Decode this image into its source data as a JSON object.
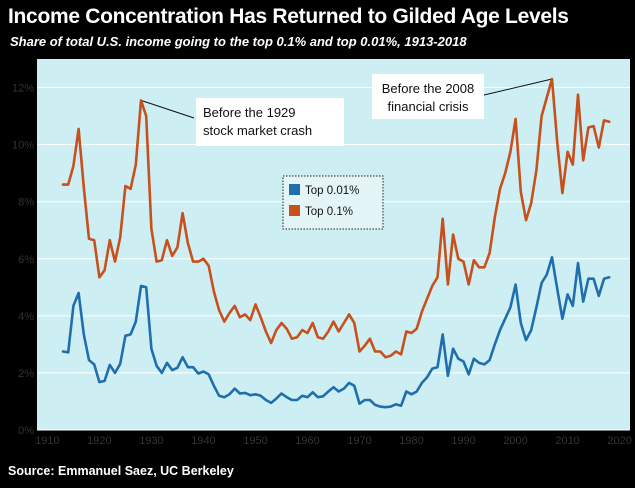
{
  "header": {
    "title": "Income Concentration Has Returned to Gilded Age Levels",
    "subtitle": "Share of total U.S. income going to the top 0.1% and top 0.01%, 1913-2018"
  },
  "footer": {
    "source": "Source: Emmanuel Saez, UC Berkeley"
  },
  "chart_data": {
    "type": "line",
    "title": "Income Concentration Has Returned to Gilded Age Levels",
    "subtitle": "Share of total U.S. income going to the top 0.1% and top 0.01%, 1913-2018",
    "xlim": [
      1908,
      2022
    ],
    "ylim": [
      0,
      13
    ],
    "x_ticks": [
      1910,
      1920,
      1930,
      1940,
      1950,
      1960,
      1970,
      1980,
      1990,
      2000,
      2010,
      2020
    ],
    "y_ticks": [
      0,
      2,
      4,
      6,
      8,
      10,
      12
    ],
    "y_tick_labels": [
      "0%",
      "2%",
      "4%",
      "6%",
      "8%",
      "10%",
      "12%"
    ],
    "grid": "horizontal",
    "legend_position": "center",
    "colors": {
      "plot_background": "#cdeef2",
      "grid": "#ffffff",
      "top_001": "#1f6fae",
      "top_01": "#c8501d"
    },
    "series": [
      {
        "name": "Top 0.01%",
        "color": "#1f6fae",
        "points": [
          [
            1913,
            2.75
          ],
          [
            1914,
            2.72
          ],
          [
            1915,
            4.35
          ],
          [
            1916,
            4.8
          ],
          [
            1917,
            3.35
          ],
          [
            1918,
            2.45
          ],
          [
            1919,
            2.3
          ],
          [
            1920,
            1.68
          ],
          [
            1921,
            1.72
          ],
          [
            1922,
            2.28
          ],
          [
            1923,
            2.0
          ],
          [
            1924,
            2.32
          ],
          [
            1925,
            3.3
          ],
          [
            1926,
            3.35
          ],
          [
            1927,
            3.8
          ],
          [
            1928,
            5.05
          ],
          [
            1929,
            5.0
          ],
          [
            1930,
            2.85
          ],
          [
            1931,
            2.25
          ],
          [
            1932,
            2.0
          ],
          [
            1933,
            2.35
          ],
          [
            1934,
            2.1
          ],
          [
            1935,
            2.18
          ],
          [
            1936,
            2.55
          ],
          [
            1937,
            2.2
          ],
          [
            1938,
            2.2
          ],
          [
            1939,
            1.98
          ],
          [
            1940,
            2.05
          ],
          [
            1941,
            1.95
          ],
          [
            1942,
            1.55
          ],
          [
            1943,
            1.2
          ],
          [
            1944,
            1.15
          ],
          [
            1945,
            1.25
          ],
          [
            1946,
            1.45
          ],
          [
            1947,
            1.28
          ],
          [
            1948,
            1.3
          ],
          [
            1949,
            1.22
          ],
          [
            1950,
            1.25
          ],
          [
            1951,
            1.2
          ],
          [
            1952,
            1.05
          ],
          [
            1953,
            0.95
          ],
          [
            1954,
            1.1
          ],
          [
            1955,
            1.28
          ],
          [
            1956,
            1.15
          ],
          [
            1957,
            1.05
          ],
          [
            1958,
            1.05
          ],
          [
            1959,
            1.2
          ],
          [
            1960,
            1.15
          ],
          [
            1961,
            1.32
          ],
          [
            1962,
            1.15
          ],
          [
            1963,
            1.18
          ],
          [
            1964,
            1.35
          ],
          [
            1965,
            1.5
          ],
          [
            1966,
            1.35
          ],
          [
            1967,
            1.45
          ],
          [
            1968,
            1.65
          ],
          [
            1969,
            1.55
          ],
          [
            1970,
            0.92
          ],
          [
            1971,
            1.05
          ],
          [
            1972,
            1.05
          ],
          [
            1973,
            0.88
          ],
          [
            1974,
            0.82
          ],
          [
            1975,
            0.8
          ],
          [
            1976,
            0.82
          ],
          [
            1977,
            0.9
          ],
          [
            1978,
            0.85
          ],
          [
            1979,
            1.35
          ],
          [
            1980,
            1.25
          ],
          [
            1981,
            1.35
          ],
          [
            1982,
            1.65
          ],
          [
            1983,
            1.85
          ],
          [
            1984,
            2.15
          ],
          [
            1985,
            2.2
          ],
          [
            1986,
            3.35
          ],
          [
            1987,
            1.9
          ],
          [
            1988,
            2.85
          ],
          [
            1989,
            2.5
          ],
          [
            1990,
            2.4
          ],
          [
            1991,
            1.95
          ],
          [
            1992,
            2.5
          ],
          [
            1993,
            2.35
          ],
          [
            1994,
            2.3
          ],
          [
            1995,
            2.45
          ],
          [
            1996,
            3.0
          ],
          [
            1997,
            3.5
          ],
          [
            1998,
            3.9
          ],
          [
            1999,
            4.3
          ],
          [
            2000,
            5.1
          ],
          [
            2001,
            3.75
          ],
          [
            2002,
            3.15
          ],
          [
            2003,
            3.5
          ],
          [
            2004,
            4.3
          ],
          [
            2005,
            5.15
          ],
          [
            2006,
            5.45
          ],
          [
            2007,
            6.05
          ],
          [
            2008,
            4.95
          ],
          [
            2009,
            3.9
          ],
          [
            2010,
            4.75
          ],
          [
            2011,
            4.35
          ],
          [
            2012,
            5.85
          ],
          [
            2013,
            4.5
          ],
          [
            2014,
            5.3
          ],
          [
            2015,
            5.3
          ],
          [
            2016,
            4.7
          ],
          [
            2017,
            5.3
          ],
          [
            2018,
            5.35
          ]
        ]
      },
      {
        "name": "Top 0.1%",
        "color": "#c8501d",
        "points": [
          [
            1913,
            8.6
          ],
          [
            1914,
            8.6
          ],
          [
            1915,
            9.25
          ],
          [
            1916,
            10.55
          ],
          [
            1917,
            8.5
          ],
          [
            1918,
            6.7
          ],
          [
            1919,
            6.65
          ],
          [
            1920,
            5.35
          ],
          [
            1921,
            5.6
          ],
          [
            1922,
            6.65
          ],
          [
            1923,
            5.9
          ],
          [
            1924,
            6.75
          ],
          [
            1925,
            8.55
          ],
          [
            1926,
            8.45
          ],
          [
            1927,
            9.3
          ],
          [
            1928,
            11.55
          ],
          [
            1929,
            11.0
          ],
          [
            1930,
            7.05
          ],
          [
            1931,
            5.9
          ],
          [
            1932,
            5.95
          ],
          [
            1933,
            6.65
          ],
          [
            1934,
            6.1
          ],
          [
            1935,
            6.4
          ],
          [
            1936,
            7.6
          ],
          [
            1937,
            6.55
          ],
          [
            1938,
            5.9
          ],
          [
            1939,
            5.9
          ],
          [
            1940,
            6.0
          ],
          [
            1941,
            5.75
          ],
          [
            1942,
            4.85
          ],
          [
            1943,
            4.2
          ],
          [
            1944,
            3.8
          ],
          [
            1945,
            4.1
          ],
          [
            1946,
            4.35
          ],
          [
            1947,
            3.95
          ],
          [
            1948,
            4.05
          ],
          [
            1949,
            3.85
          ],
          [
            1950,
            4.4
          ],
          [
            1951,
            3.95
          ],
          [
            1952,
            3.45
          ],
          [
            1953,
            3.05
          ],
          [
            1954,
            3.5
          ],
          [
            1955,
            3.75
          ],
          [
            1956,
            3.55
          ],
          [
            1957,
            3.2
          ],
          [
            1958,
            3.25
          ],
          [
            1959,
            3.5
          ],
          [
            1960,
            3.4
          ],
          [
            1961,
            3.75
          ],
          [
            1962,
            3.25
          ],
          [
            1963,
            3.2
          ],
          [
            1964,
            3.45
          ],
          [
            1965,
            3.8
          ],
          [
            1966,
            3.45
          ],
          [
            1967,
            3.75
          ],
          [
            1968,
            4.05
          ],
          [
            1969,
            3.75
          ],
          [
            1970,
            2.75
          ],
          [
            1971,
            2.95
          ],
          [
            1972,
            3.2
          ],
          [
            1973,
            2.75
          ],
          [
            1974,
            2.75
          ],
          [
            1975,
            2.55
          ],
          [
            1976,
            2.6
          ],
          [
            1977,
            2.75
          ],
          [
            1978,
            2.65
          ],
          [
            1979,
            3.45
          ],
          [
            1980,
            3.4
          ],
          [
            1981,
            3.55
          ],
          [
            1982,
            4.15
          ],
          [
            1983,
            4.6
          ],
          [
            1984,
            5.05
          ],
          [
            1985,
            5.35
          ],
          [
            1986,
            7.4
          ],
          [
            1987,
            5.1
          ],
          [
            1988,
            6.85
          ],
          [
            1989,
            6.0
          ],
          [
            1990,
            5.9
          ],
          [
            1991,
            5.1
          ],
          [
            1992,
            5.95
          ],
          [
            1993,
            5.7
          ],
          [
            1994,
            5.7
          ],
          [
            1995,
            6.2
          ],
          [
            1996,
            7.45
          ],
          [
            1997,
            8.45
          ],
          [
            1998,
            9.0
          ],
          [
            1999,
            9.75
          ],
          [
            2000,
            10.9
          ],
          [
            2001,
            8.35
          ],
          [
            2002,
            7.35
          ],
          [
            2003,
            7.95
          ],
          [
            2004,
            9.1
          ],
          [
            2005,
            11.0
          ],
          [
            2006,
            11.65
          ],
          [
            2007,
            12.3
          ],
          [
            2008,
            10.1
          ],
          [
            2009,
            8.3
          ],
          [
            2010,
            9.75
          ],
          [
            2011,
            9.3
          ],
          [
            2012,
            11.75
          ],
          [
            2013,
            9.45
          ],
          [
            2014,
            10.6
          ],
          [
            2015,
            10.65
          ],
          [
            2016,
            9.9
          ],
          [
            2017,
            10.85
          ],
          [
            2018,
            10.8
          ]
        ]
      }
    ],
    "annotations": [
      {
        "text_lines": [
          "Before the 1929",
          "stock market crash"
        ],
        "x": 1928,
        "y": 11.55
      },
      {
        "text_lines": [
          "Before the 2008",
          "financial crisis"
        ],
        "x": 2007,
        "y": 12.3
      }
    ]
  }
}
